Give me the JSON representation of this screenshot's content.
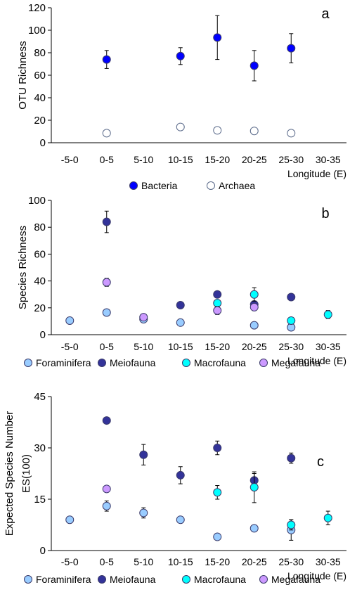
{
  "colors": {
    "bacteria": "#0000ff",
    "archaea": "#ffffff",
    "foraminifera": "#99ccff",
    "meiofauna": "#333399",
    "macrofauna": "#00ffff",
    "megafauna": "#cc99ff"
  },
  "chart_data": [
    {
      "type": "scatter",
      "panel_letter": "a",
      "xlabel": "Longitude (E)",
      "ylabel": "OTU Richness",
      "categories": [
        "-5-0",
        "0-5",
        "5-10",
        "10-15",
        "15-20",
        "20-25",
        "25-30",
        "30-35"
      ],
      "ylim": [
        0,
        120
      ],
      "yticks": [
        0,
        20,
        40,
        60,
        80,
        100,
        120
      ],
      "grid": false,
      "legend_position": "bottom",
      "series": [
        {
          "name": "Bacteria",
          "color_key": "bacteria",
          "points": [
            {
              "x": "0-5",
              "y": 74,
              "err": 8
            },
            {
              "x": "10-15",
              "y": 77,
              "err": 7.5
            },
            {
              "x": "15-20",
              "y": 93.5,
              "err": 19.5
            },
            {
              "x": "20-25",
              "y": 68.5,
              "err": 13.5
            },
            {
              "x": "25-30",
              "y": 84,
              "err": 13
            }
          ]
        },
        {
          "name": "Archaea",
          "color_key": "archaea",
          "points": [
            {
              "x": "0-5",
              "y": 8.5
            },
            {
              "x": "10-15",
              "y": 14
            },
            {
              "x": "15-20",
              "y": 11
            },
            {
              "x": "20-25",
              "y": 10.5
            },
            {
              "x": "25-30",
              "y": 8.5
            }
          ]
        }
      ]
    },
    {
      "type": "scatter",
      "panel_letter": "b",
      "xlabel": "Longitude (E)",
      "ylabel": "Species Richness",
      "categories": [
        "-5-0",
        "0-5",
        "5-10",
        "10-15",
        "15-20",
        "20-25",
        "25-30",
        "30-35"
      ],
      "ylim": [
        0,
        100
      ],
      "yticks": [
        0,
        20,
        40,
        60,
        80,
        100
      ],
      "grid": false,
      "legend_position": "bottom",
      "series": [
        {
          "name": "Foraminifera",
          "color_key": "foraminifera",
          "points": [
            {
              "x": "-5-0",
              "y": 10.5
            },
            {
              "x": "0-5",
              "y": 16.5
            },
            {
              "x": "5-10",
              "y": 11.5
            },
            {
              "x": "10-15",
              "y": 9
            },
            {
              "x": "20-25",
              "y": 7
            },
            {
              "x": "25-30",
              "y": 5.5,
              "err": 2
            }
          ]
        },
        {
          "name": "Meiofauna",
          "color_key": "meiofauna",
          "points": [
            {
              "x": "0-5",
              "y": 84,
              "err": 8
            },
            {
              "x": "10-15",
              "y": 22
            },
            {
              "x": "15-20",
              "y": 30
            },
            {
              "x": "20-25",
              "y": 22.5,
              "err": 2.5
            },
            {
              "x": "25-30",
              "y": 28
            }
          ]
        },
        {
          "name": "Macrofauna",
          "color_key": "macrofauna",
          "points": [
            {
              "x": "15-20",
              "y": 23.5,
              "err": 2
            },
            {
              "x": "20-25",
              "y": 30,
              "err": 5
            },
            {
              "x": "25-30",
              "y": 10.5
            },
            {
              "x": "30-35",
              "y": 15,
              "err": 3
            }
          ]
        },
        {
          "name": "Megafauna",
          "color_key": "megafauna",
          "points": [
            {
              "x": "0-5",
              "y": 39,
              "err": 3
            },
            {
              "x": "5-10",
              "y": 13,
              "err": 2
            },
            {
              "x": "15-20",
              "y": 18,
              "err": 3
            },
            {
              "x": "20-25",
              "y": 20.5,
              "err": 2.5
            }
          ]
        }
      ]
    },
    {
      "type": "scatter",
      "panel_letter": "c",
      "xlabel": "Longitude (E)",
      "ylabel_lines": [
        "Expected Species Number",
        "ES(100)"
      ],
      "categories": [
        "-5-0",
        "0-5",
        "5-10",
        "10-15",
        "15-20",
        "20-25",
        "25-30",
        "30-35"
      ],
      "ylim": [
        0,
        45
      ],
      "yticks": [
        0,
        15,
        30,
        45
      ],
      "grid": false,
      "legend_position": "bottom",
      "series": [
        {
          "name": "Foraminifera",
          "color_key": "foraminifera",
          "points": [
            {
              "x": "-5-0",
              "y": 9
            },
            {
              "x": "0-5",
              "y": 13,
              "err": 1.5
            },
            {
              "x": "5-10",
              "y": 11,
              "err": 1.5
            },
            {
              "x": "10-15",
              "y": 9
            },
            {
              "x": "15-20",
              "y": 4
            },
            {
              "x": "20-25",
              "y": 6.5
            },
            {
              "x": "25-30",
              "y": 6,
              "err": 3
            }
          ]
        },
        {
          "name": "Meiofauna",
          "color_key": "meiofauna",
          "points": [
            {
              "x": "0-5",
              "y": 38
            },
            {
              "x": "5-10",
              "y": 28,
              "err": 3
            },
            {
              "x": "10-15",
              "y": 22,
              "err": 2.5
            },
            {
              "x": "15-20",
              "y": 30,
              "err": 2
            },
            {
              "x": "20-25",
              "y": 20.5,
              "err": 2
            },
            {
              "x": "25-30",
              "y": 27,
              "err": 1.5
            }
          ]
        },
        {
          "name": "Macrofauna",
          "color_key": "macrofauna",
          "points": [
            {
              "x": "15-20",
              "y": 17,
              "err": 2
            },
            {
              "x": "20-25",
              "y": 18.5,
              "err": 4.5
            },
            {
              "x": "25-30",
              "y": 7.5,
              "err": 1.5
            },
            {
              "x": "30-35",
              "y": 9.5,
              "err": 2
            }
          ]
        },
        {
          "name": "Megafauna",
          "color_key": "megafauna",
          "points": [
            {
              "x": "0-5",
              "y": 18
            }
          ]
        }
      ]
    }
  ]
}
